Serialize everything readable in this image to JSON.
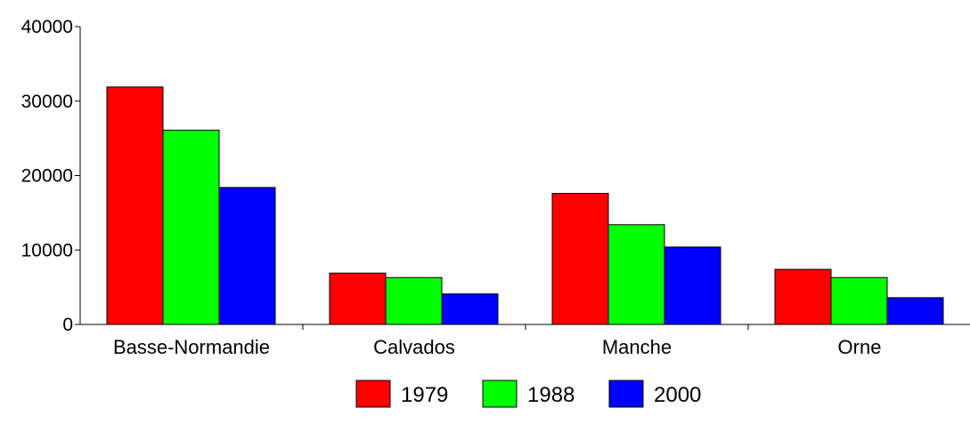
{
  "chart_data": {
    "type": "bar",
    "categories": [
      "Basse-Normandie",
      "Calvados",
      "Manche",
      "Orne"
    ],
    "series": [
      {
        "name": "1979",
        "color": "#ff0000",
        "values": [
          31900,
          6900,
          17600,
          7400
        ]
      },
      {
        "name": "1988",
        "color": "#00ff00",
        "values": [
          26100,
          6300,
          13400,
          6300
        ]
      },
      {
        "name": "2000",
        "color": "#0000ff",
        "values": [
          18400,
          4100,
          10400,
          3600
        ]
      }
    ],
    "y_ticks": [
      "0",
      "10000",
      "20000",
      "30000",
      "40000"
    ],
    "ylim": [
      0,
      40000
    ],
    "grid": false,
    "legend_position": "bottom-center"
  }
}
